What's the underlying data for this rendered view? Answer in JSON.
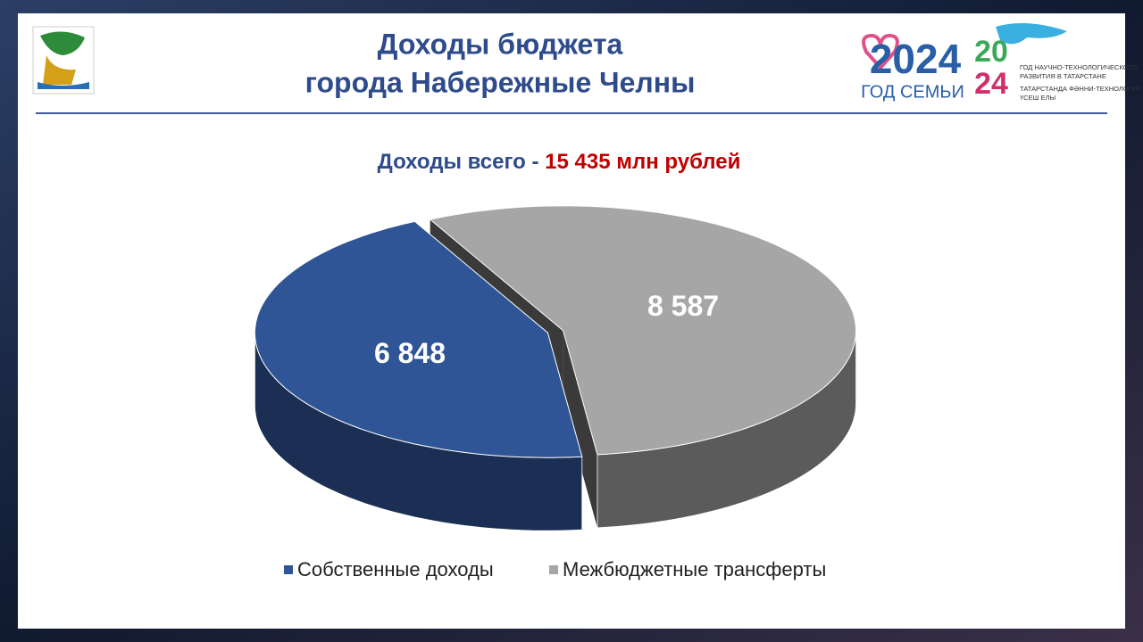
{
  "chart_data": {
    "type": "pie",
    "title": [
      "Доходы бюджета",
      "города Набережные Челны"
    ],
    "subtitle_prefix": "Доходы всего -",
    "subtitle_total": "15 435 млн рублей",
    "categories": [
      "Собственные доходы",
      "Межбюджетные трансферты"
    ],
    "values": [
      6848,
      8587
    ],
    "value_labels": [
      "6 848",
      "8 587"
    ],
    "colors": [
      "#2f5597",
      "#a6a6a6"
    ],
    "legend": "bottom"
  },
  "logo": {
    "year": "2024",
    "family": "ГОД СЕМЬИ",
    "science_top": "20",
    "science_bottom": "24",
    "science_lines": [
      "ГОД НАУЧНО-ТЕХНОЛОГИЧЕСКОГО",
      "РАЗВИТИЯ В ТАТАРСТАНЕ",
      "ТАТАРСТАНДА ФӘННИ-ТЕХНОЛОГИК",
      "ҮСЕШ ЕЛЫ"
    ]
  }
}
